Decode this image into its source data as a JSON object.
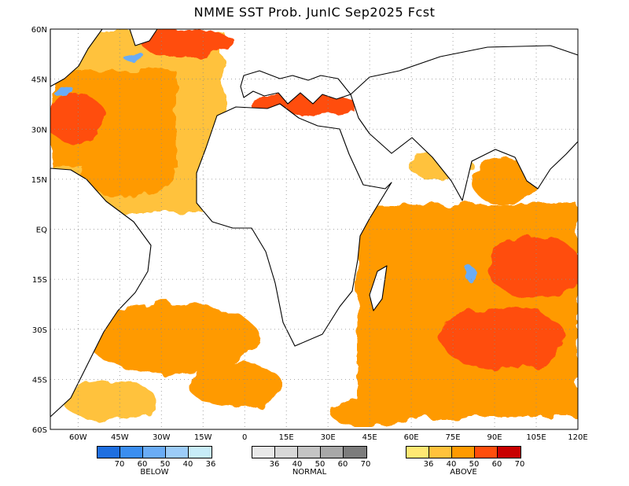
{
  "title": "NMME SST Prob. JunIC  Sep2025 Fcst",
  "map": {
    "lon_labels": [
      "60W",
      "45W",
      "30W",
      "15W",
      "0",
      "15E",
      "30E",
      "45E",
      "60E",
      "75E",
      "90E",
      "105E",
      "120E"
    ],
    "lat_labels": [
      "60N",
      "45N",
      "30N",
      "15N",
      "EQ",
      "15S",
      "30S",
      "45S",
      "60S"
    ],
    "lon_range": [
      -70,
      120
    ],
    "lat_range": [
      -60,
      60
    ]
  },
  "legend": {
    "below": {
      "label": "BELOW",
      "values": [
        "70",
        "60",
        "50",
        "40",
        "36"
      ],
      "colors": [
        "#1f6fe0",
        "#3b8ef0",
        "#6aacf5",
        "#9cccf8",
        "#c8ecf8"
      ]
    },
    "normal": {
      "label": "NORMAL",
      "values": [
        "36",
        "40",
        "50",
        "60",
        "70"
      ],
      "colors": [
        "#e8e8e8",
        "#d8d8d8",
        "#c4c4c4",
        "#a8a8a8",
        "#7c7c7c"
      ]
    },
    "above": {
      "label": "ABOVE",
      "values": [
        "36",
        "40",
        "50",
        "60",
        "70"
      ],
      "colors": [
        "#ffe873",
        "#ffc23c",
        "#ff9a00",
        "#ff4e0c",
        "#c80000"
      ]
    }
  }
}
